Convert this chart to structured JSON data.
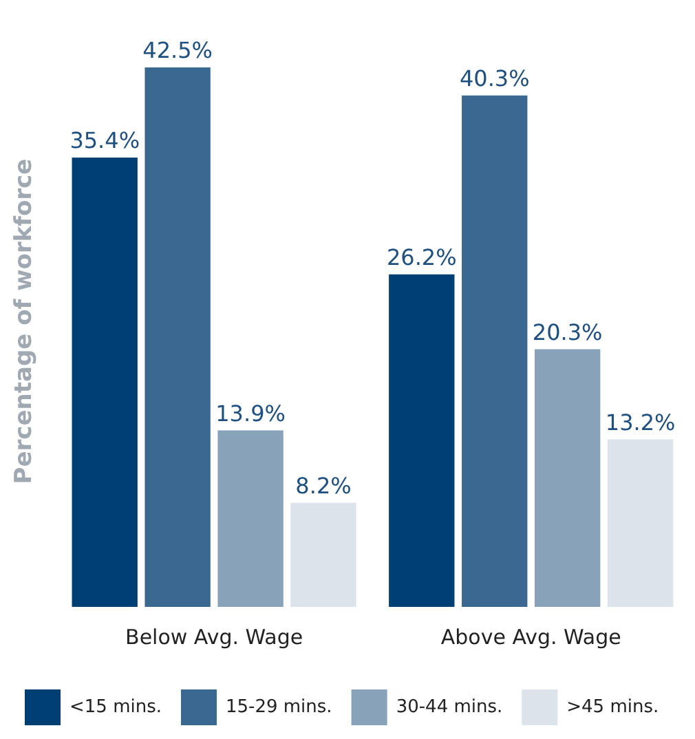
{
  "chart_data": {
    "type": "bar",
    "ylabel": "Percentage of workforce",
    "categories": [
      "Below Avg. Wage",
      "Above Avg. Wage"
    ],
    "series": [
      {
        "name": "<15 mins.",
        "color": "#003f74",
        "values": [
          35.4,
          26.2
        ],
        "value_labels": [
          "35.4%",
          "26.2%"
        ]
      },
      {
        "name": "15-29 mins.",
        "color": "#3a6890",
        "values": [
          42.5,
          40.3
        ],
        "value_labels": [
          "42.5%",
          "40.3%"
        ]
      },
      {
        "name": "30-44 mins.",
        "color": "#88a2b9",
        "values": [
          13.9,
          20.3
        ],
        "value_labels": [
          "13.9%",
          "20.3%"
        ]
      },
      {
        "name": ">45 mins.",
        "color": "#dde3ea",
        "values": [
          8.2,
          13.2
        ],
        "value_labels": [
          "8.2%",
          "13.2%"
        ]
      }
    ],
    "legend": "bottom",
    "grid": false
  }
}
